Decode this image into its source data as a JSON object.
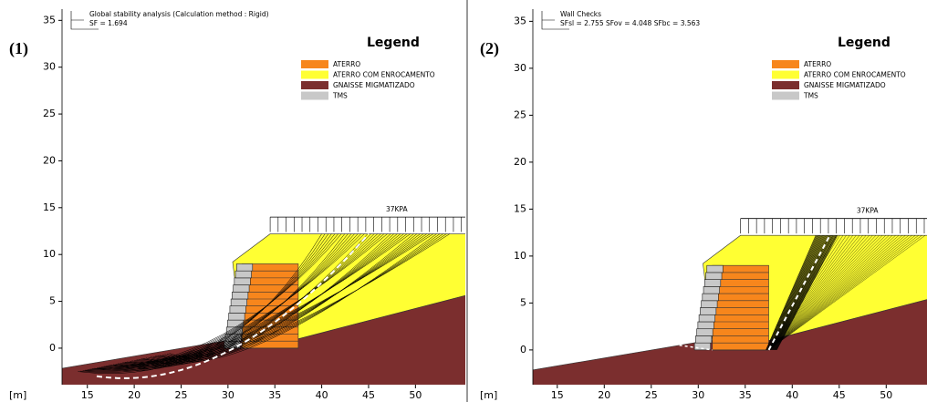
{
  "panels": [
    {
      "label": "(1)",
      "header": [
        "Global stability analysis (Calculation method : Rigid)",
        "SF = 1.694"
      ],
      "legend_title": "Legend",
      "legend": [
        {
          "name": "ATERRO",
          "color": "#f7861c"
        },
        {
          "name": "ATERRO COM ENROCAMENTO",
          "color": "#ffff33"
        },
        {
          "name": "GNAISSE MIGMATIZADO",
          "color": "#7b2e2e"
        },
        {
          "name": "TMS",
          "color": "#c8c8c8"
        }
      ],
      "load_label": "37KPA",
      "axis_unit": "[m]",
      "xticks": [
        15,
        20,
        25,
        30,
        35,
        40,
        45,
        50
      ],
      "yticks": [
        0,
        5,
        10,
        15,
        20,
        25,
        30,
        35
      ],
      "xlim": [
        12.3,
        55.2
      ],
      "ylim": [
        -3.9,
        36.2
      ]
    },
    {
      "label": "(2)",
      "header": [
        "Wall Checks",
        "SFsl = 2.755 SFov = 4.048 SFbc = 3.563"
      ],
      "legend_title": "Legend",
      "legend": [
        {
          "name": "ATERRO",
          "color": "#f7861c"
        },
        {
          "name": "ATERRO COM ENROCAMENTO",
          "color": "#ffff33"
        },
        {
          "name": "GNAISSE MIGMATIZADO",
          "color": "#7b2e2e"
        },
        {
          "name": "TMS",
          "color": "#c8c8c8"
        }
      ],
      "load_label": "37KPA",
      "axis_unit": "[m]",
      "xticks": [
        15,
        20,
        25,
        30,
        35,
        40,
        45,
        50
      ],
      "yticks": [
        0,
        5,
        10,
        15,
        20,
        25,
        30,
        35
      ],
      "xlim": [
        12.4,
        55.0
      ],
      "ylim": [
        -3.7,
        36.3
      ]
    }
  ]
}
